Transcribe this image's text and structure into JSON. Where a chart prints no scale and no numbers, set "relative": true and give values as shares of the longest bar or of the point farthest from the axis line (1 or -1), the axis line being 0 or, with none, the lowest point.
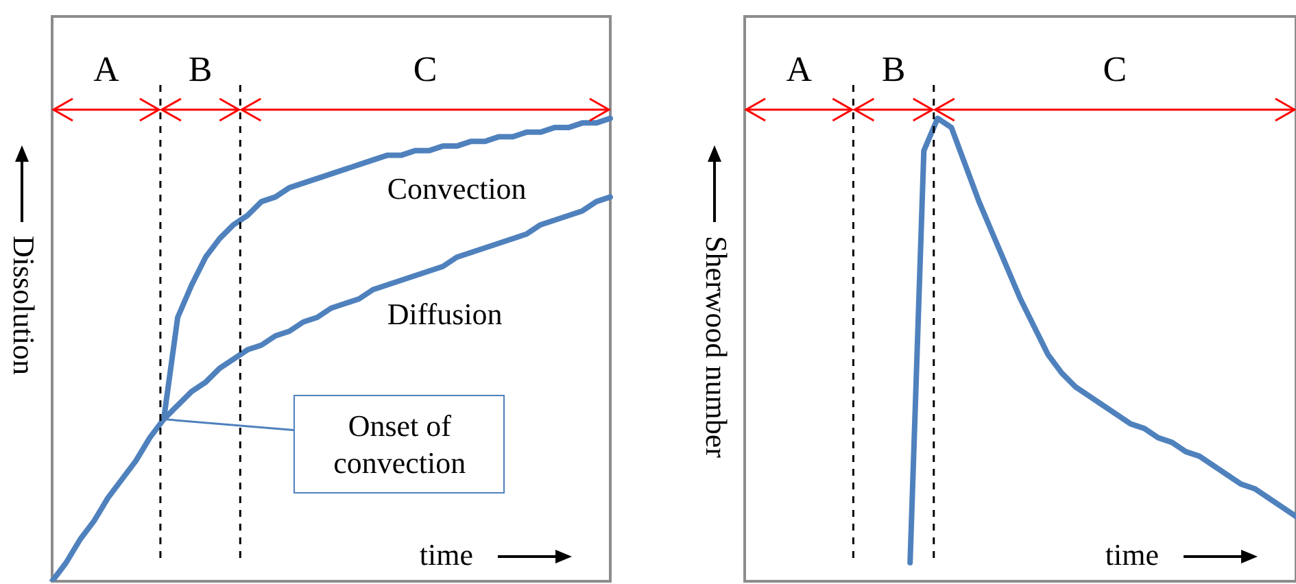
{
  "chart_data": [
    {
      "type": "line",
      "relative": true,
      "ylabel": "Dissolution",
      "xlabel": "time",
      "legend": false,
      "marker": "none",
      "categories": [
        null,
        null,
        null,
        null,
        null,
        null,
        null,
        null,
        null,
        null,
        null,
        null,
        null,
        null,
        null,
        null,
        null,
        null,
        null,
        null,
        null,
        null,
        null,
        null,
        null,
        null,
        null,
        null,
        null,
        null,
        null,
        null,
        null,
        null,
        null,
        null,
        null,
        null,
        null,
        null,
        null
      ],
      "series": [
        {
          "name": "Diffusion",
          "color": "#4f81bd",
          "values": [
            0,
            0.04,
            0.09,
            0.13,
            0.18,
            0.22,
            0.26,
            0.31,
            0.35,
            0.38,
            0.41,
            0.43,
            0.46,
            0.48,
            0.5,
            0.51,
            0.53,
            0.54,
            0.56,
            0.57,
            0.59,
            0.6,
            0.61,
            0.63,
            0.64,
            0.65,
            0.66,
            0.67,
            0.68,
            0.7,
            0.71,
            0.72,
            0.73,
            0.74,
            0.75,
            0.77,
            0.78,
            0.79,
            0.8,
            0.82,
            0.83
          ]
        },
        {
          "name": "Convection",
          "color": "#4f81bd",
          "values": [
            null,
            null,
            null,
            null,
            null,
            null,
            null,
            null,
            0.35,
            0.57,
            0.64,
            0.7,
            0.74,
            0.77,
            0.79,
            0.82,
            0.83,
            0.85,
            0.86,
            0.87,
            0.88,
            0.89,
            0.9,
            0.91,
            0.92,
            0.92,
            0.93,
            0.93,
            0.94,
            0.94,
            0.95,
            0.95,
            0.96,
            0.96,
            0.97,
            0.97,
            0.98,
            0.98,
            0.99,
            0.99,
            1
          ]
        }
      ],
      "annotations": [
        "A",
        "B",
        "C",
        "Onset of convection"
      ]
    },
    {
      "type": "line",
      "relative": true,
      "ylabel": "Sherwood number",
      "xlabel": "time",
      "legend": false,
      "marker": "none",
      "categories": [
        null,
        null,
        null,
        null,
        null,
        null,
        null,
        null,
        null,
        null,
        null,
        null,
        null,
        null,
        null,
        null,
        null,
        null,
        null,
        null,
        null,
        null,
        null,
        null,
        null,
        null,
        null,
        null,
        null,
        null,
        null,
        null,
        null,
        null,
        null,
        null,
        null,
        null,
        null,
        null,
        null
      ],
      "series": [
        {
          "color": "#4f81bd",
          "values": [
            null,
            null,
            null,
            null,
            null,
            null,
            null,
            null,
            null,
            null,
            null,
            null,
            0.04,
            0.93,
            1,
            0.98,
            0.9,
            0.82,
            0.75,
            0.68,
            0.61,
            0.55,
            0.49,
            0.45,
            0.42,
            0.4,
            0.38,
            0.36,
            0.34,
            0.33,
            0.31,
            0.3,
            0.28,
            0.27,
            0.25,
            0.23,
            0.21,
            0.2,
            0.18,
            0.16,
            0.14
          ]
        }
      ],
      "annotations": [
        "A",
        "B",
        "C"
      ]
    }
  ]
}
